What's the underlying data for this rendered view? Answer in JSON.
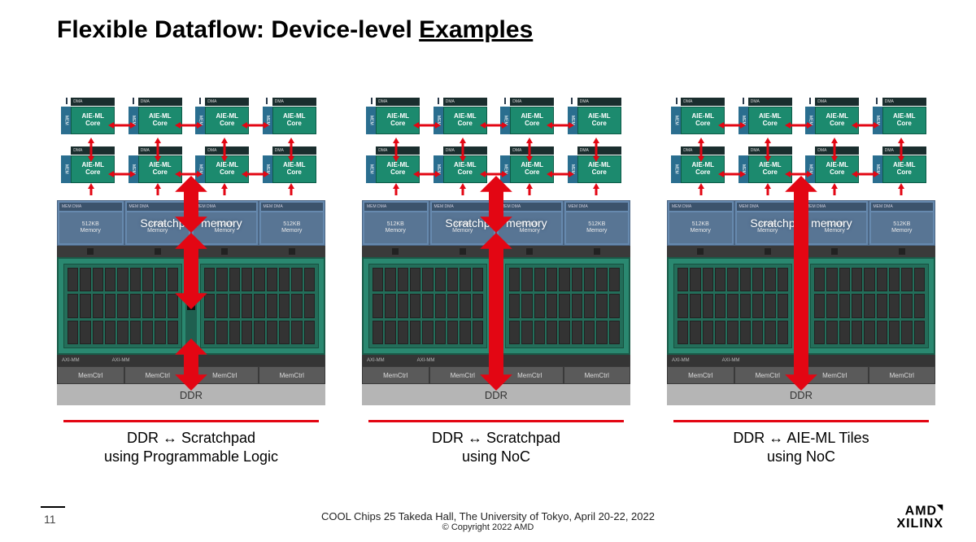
{
  "title_prefix": "Flexible Dataflow: Device-level ",
  "title_underline": "Examples",
  "aie_tile": {
    "dma_label": "DMA",
    "mem_label": "MEM",
    "core_label": "AIE-ML\nCore"
  },
  "scratchpad": {
    "dma_label": "MEM DMA",
    "mem_top": "512KB",
    "mem_bottom": "Memory",
    "overlay_label": "Scratchpad memory"
  },
  "axi_label": "AXI-MM",
  "memctrl_label": "MemCtrl",
  "ddr_label": "DDR",
  "panels": [
    {
      "caption_l1": "DDR ↔ Scratchpad",
      "caption_l2": "using Programmable Logic",
      "arrow_mode": "three_short"
    },
    {
      "caption_l1": "DDR ↔ Scratchpad",
      "caption_l2": "using NoC",
      "arrow_mode": "top_short_bottom_long"
    },
    {
      "caption_l1": "DDR ↔ AIE-ML Tiles",
      "caption_l2": "using NoC",
      "arrow_mode": "one_long"
    }
  ],
  "colors": {
    "red": "#e30613",
    "aie_core": "#1c8a6e",
    "aie_mem": "#2a6e8f",
    "scratchpad_bg": "#5a7fa8",
    "pl_bg": "#2a8870",
    "ddr_bg": "#b5b5b5"
  },
  "footer_line": "COOL Chips 25 Takeda Hall, The University of Tokyo, April 20-22, 2022",
  "copyright": "© Copyright 2022 AMD",
  "page_number": "11",
  "logo_top": "AMD",
  "logo_bottom": "XILINX"
}
